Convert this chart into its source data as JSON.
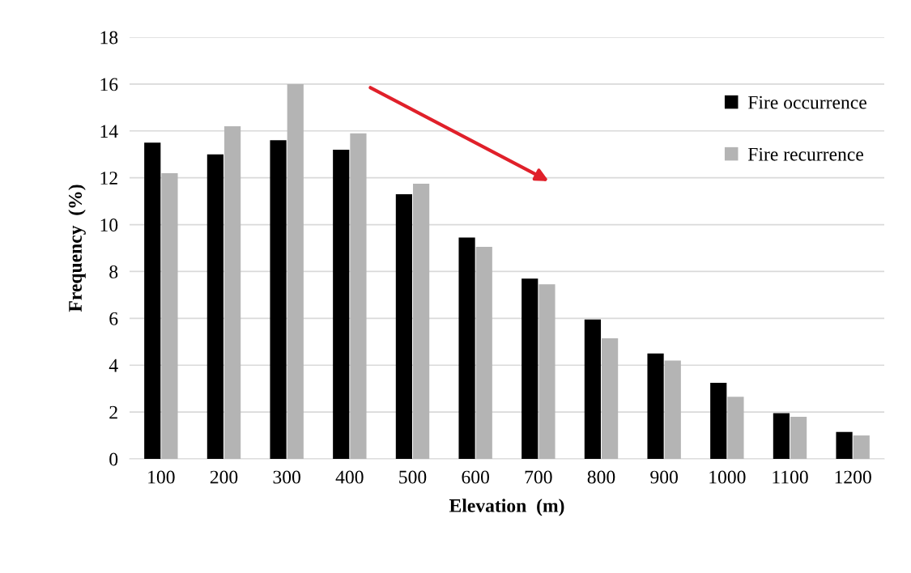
{
  "chart_data": {
    "type": "bar",
    "xlabel": "Elevation  (m)",
    "ylabel": "Frequency  (%)",
    "categories": [
      "100",
      "200",
      "300",
      "400",
      "500",
      "600",
      "700",
      "800",
      "900",
      "1000",
      "1100",
      "1200"
    ],
    "series": [
      {
        "name": "Fire occurrence",
        "color": "#000000",
        "values": [
          13.5,
          13.0,
          13.6,
          13.2,
          11.3,
          9.45,
          7.7,
          5.95,
          4.5,
          3.25,
          1.95,
          1.15
        ]
      },
      {
        "name": "Fire recurrence",
        "color": "#b4b4b4",
        "values": [
          12.2,
          14.2,
          16.0,
          13.9,
          11.75,
          9.05,
          7.45,
          5.15,
          4.2,
          2.65,
          1.8,
          1.0
        ]
      }
    ],
    "ylim": [
      0,
      18
    ],
    "yticks": [
      0,
      2,
      4,
      6,
      8,
      10,
      12,
      14,
      16,
      18
    ],
    "grid": "y",
    "legend": "right"
  }
}
